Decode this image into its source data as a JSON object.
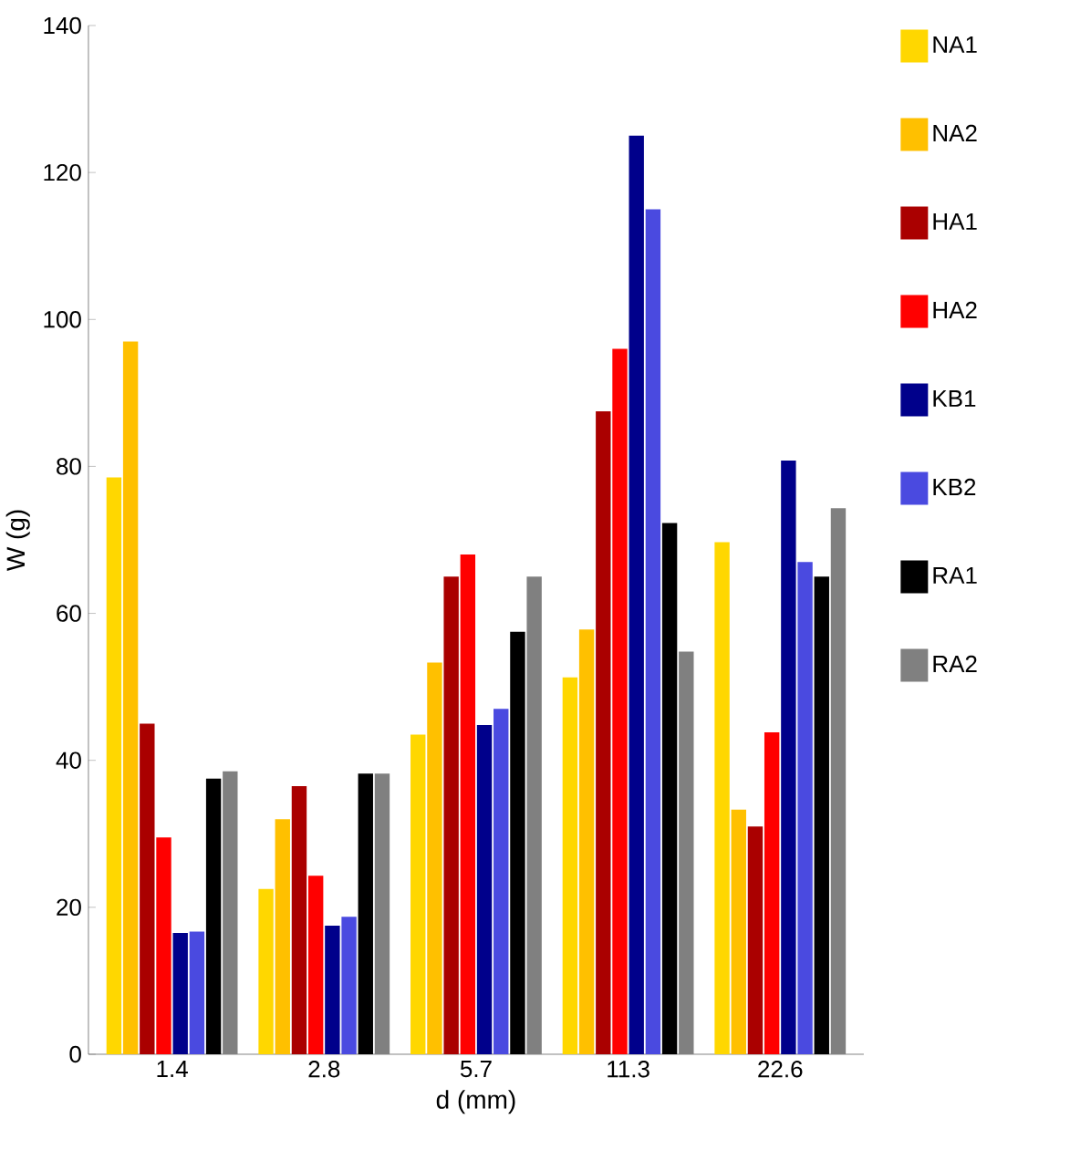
{
  "chart_data": {
    "type": "bar",
    "xlabel": "d (mm)",
    "ylabel": "W (g)",
    "categories": [
      "1.4",
      "2.8",
      "5.7",
      "11.3",
      "22.6"
    ],
    "series": [
      {
        "name": "NA1",
        "color": "#ffd700",
        "values": [
          78.5,
          22.5,
          43.5,
          51.3,
          69.7
        ]
      },
      {
        "name": "NA2",
        "color": "#ffc000",
        "values": [
          97,
          32,
          53.3,
          57.8,
          33.3
        ]
      },
      {
        "name": "HA1",
        "color": "#aa0000",
        "values": [
          45,
          36.5,
          65,
          87.5,
          31
        ]
      },
      {
        "name": "HA2",
        "color": "#ff0000",
        "values": [
          29.5,
          24.3,
          68,
          96,
          43.8
        ]
      },
      {
        "name": "KB1",
        "color": "#00008b",
        "values": [
          16.5,
          17.5,
          44.8,
          125,
          80.8
        ]
      },
      {
        "name": "KB2",
        "color": "#4a4ae0",
        "values": [
          16.7,
          18.7,
          47,
          115,
          67
        ]
      },
      {
        "name": "RA1",
        "color": "#000000",
        "values": [
          37.5,
          38.2,
          57.5,
          72.3,
          65
        ]
      },
      {
        "name": "RA2",
        "color": "#808080",
        "values": [
          38.5,
          38.2,
          65,
          54.8,
          74.3
        ]
      }
    ],
    "ylim": [
      0,
      140
    ],
    "yticks": [
      0,
      20,
      40,
      60,
      80,
      100,
      120,
      140
    ],
    "grid": false,
    "legend": "right"
  }
}
